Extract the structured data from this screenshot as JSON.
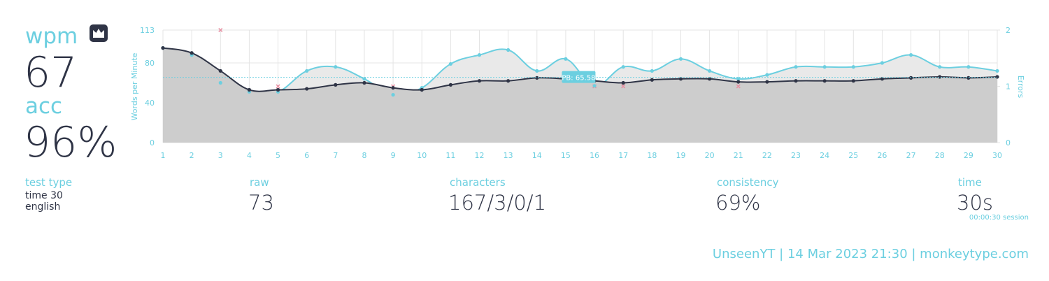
{
  "wpm": {
    "label": "wpm",
    "value": "67"
  },
  "acc": {
    "label": "acc",
    "value": "96%"
  },
  "stats": {
    "test_type": {
      "label": "test type",
      "lines": [
        "time 30",
        "english"
      ]
    },
    "raw": {
      "label": "raw",
      "value": "73"
    },
    "characters": {
      "label": "characters",
      "value": "167/3/0/1"
    },
    "consistency": {
      "label": "consistency",
      "value": "69%"
    },
    "time": {
      "label": "time",
      "value": "30s",
      "note": "00:00:30 session"
    }
  },
  "footer": "UnseenYT | 14 Mar 2023 21:30 | monkeytype.com",
  "chart_data": {
    "type": "line",
    "y_label": "Words per Minute",
    "y2_label": "Errors",
    "x": [
      1,
      2,
      3,
      4,
      5,
      6,
      7,
      8,
      9,
      10,
      11,
      12,
      13,
      14,
      15,
      16,
      17,
      18,
      19,
      20,
      21,
      22,
      23,
      24,
      25,
      26,
      27,
      28,
      29,
      30
    ],
    "xlim": [
      1,
      30
    ],
    "xticks": [
      1,
      2,
      3,
      4,
      5,
      6,
      7,
      8,
      9,
      10,
      11,
      12,
      13,
      14,
      15,
      16,
      17,
      18,
      19,
      20,
      21,
      22,
      23,
      24,
      25,
      26,
      27,
      28,
      29,
      30
    ],
    "ylim": [
      0,
      113
    ],
    "yticks": [
      0,
      40,
      80,
      113
    ],
    "y2lim": [
      0,
      2
    ],
    "y2ticks": [
      0,
      1,
      2
    ],
    "grid": true,
    "series": [
      {
        "type": "line",
        "color": "#6ccfe0",
        "fill": "#e9e9e9",
        "values": [
          95,
          88,
          60,
          51,
          51,
          72,
          76,
          64,
          48,
          55,
          79,
          88,
          93,
          72,
          84,
          57,
          76,
          72,
          84,
          72,
          64,
          68,
          76,
          76,
          76,
          80,
          88,
          76,
          76,
          72
        ]
      },
      {
        "type": "line",
        "color": "#2f3446",
        "fill": "#cdcdcd",
        "values": [
          95,
          90,
          72,
          53,
          53,
          54,
          58,
          60,
          55,
          53,
          58,
          62,
          62,
          65,
          64,
          62,
          60,
          63,
          64,
          64,
          61,
          61,
          62,
          62,
          62,
          64,
          65,
          66,
          65,
          66
        ]
      },
      {
        "type": "scatter",
        "axis": "y2",
        "color": "#e88ea1",
        "values": [
          null,
          null,
          2,
          null,
          1,
          null,
          null,
          null,
          1,
          null,
          null,
          null,
          null,
          null,
          null,
          1,
          1,
          null,
          null,
          null,
          1,
          null,
          null,
          null,
          null,
          null,
          null,
          null,
          null,
          null
        ]
      }
    ],
    "annotations": [
      {
        "value": 65.58,
        "label": "PB: 65.58"
      }
    ]
  }
}
